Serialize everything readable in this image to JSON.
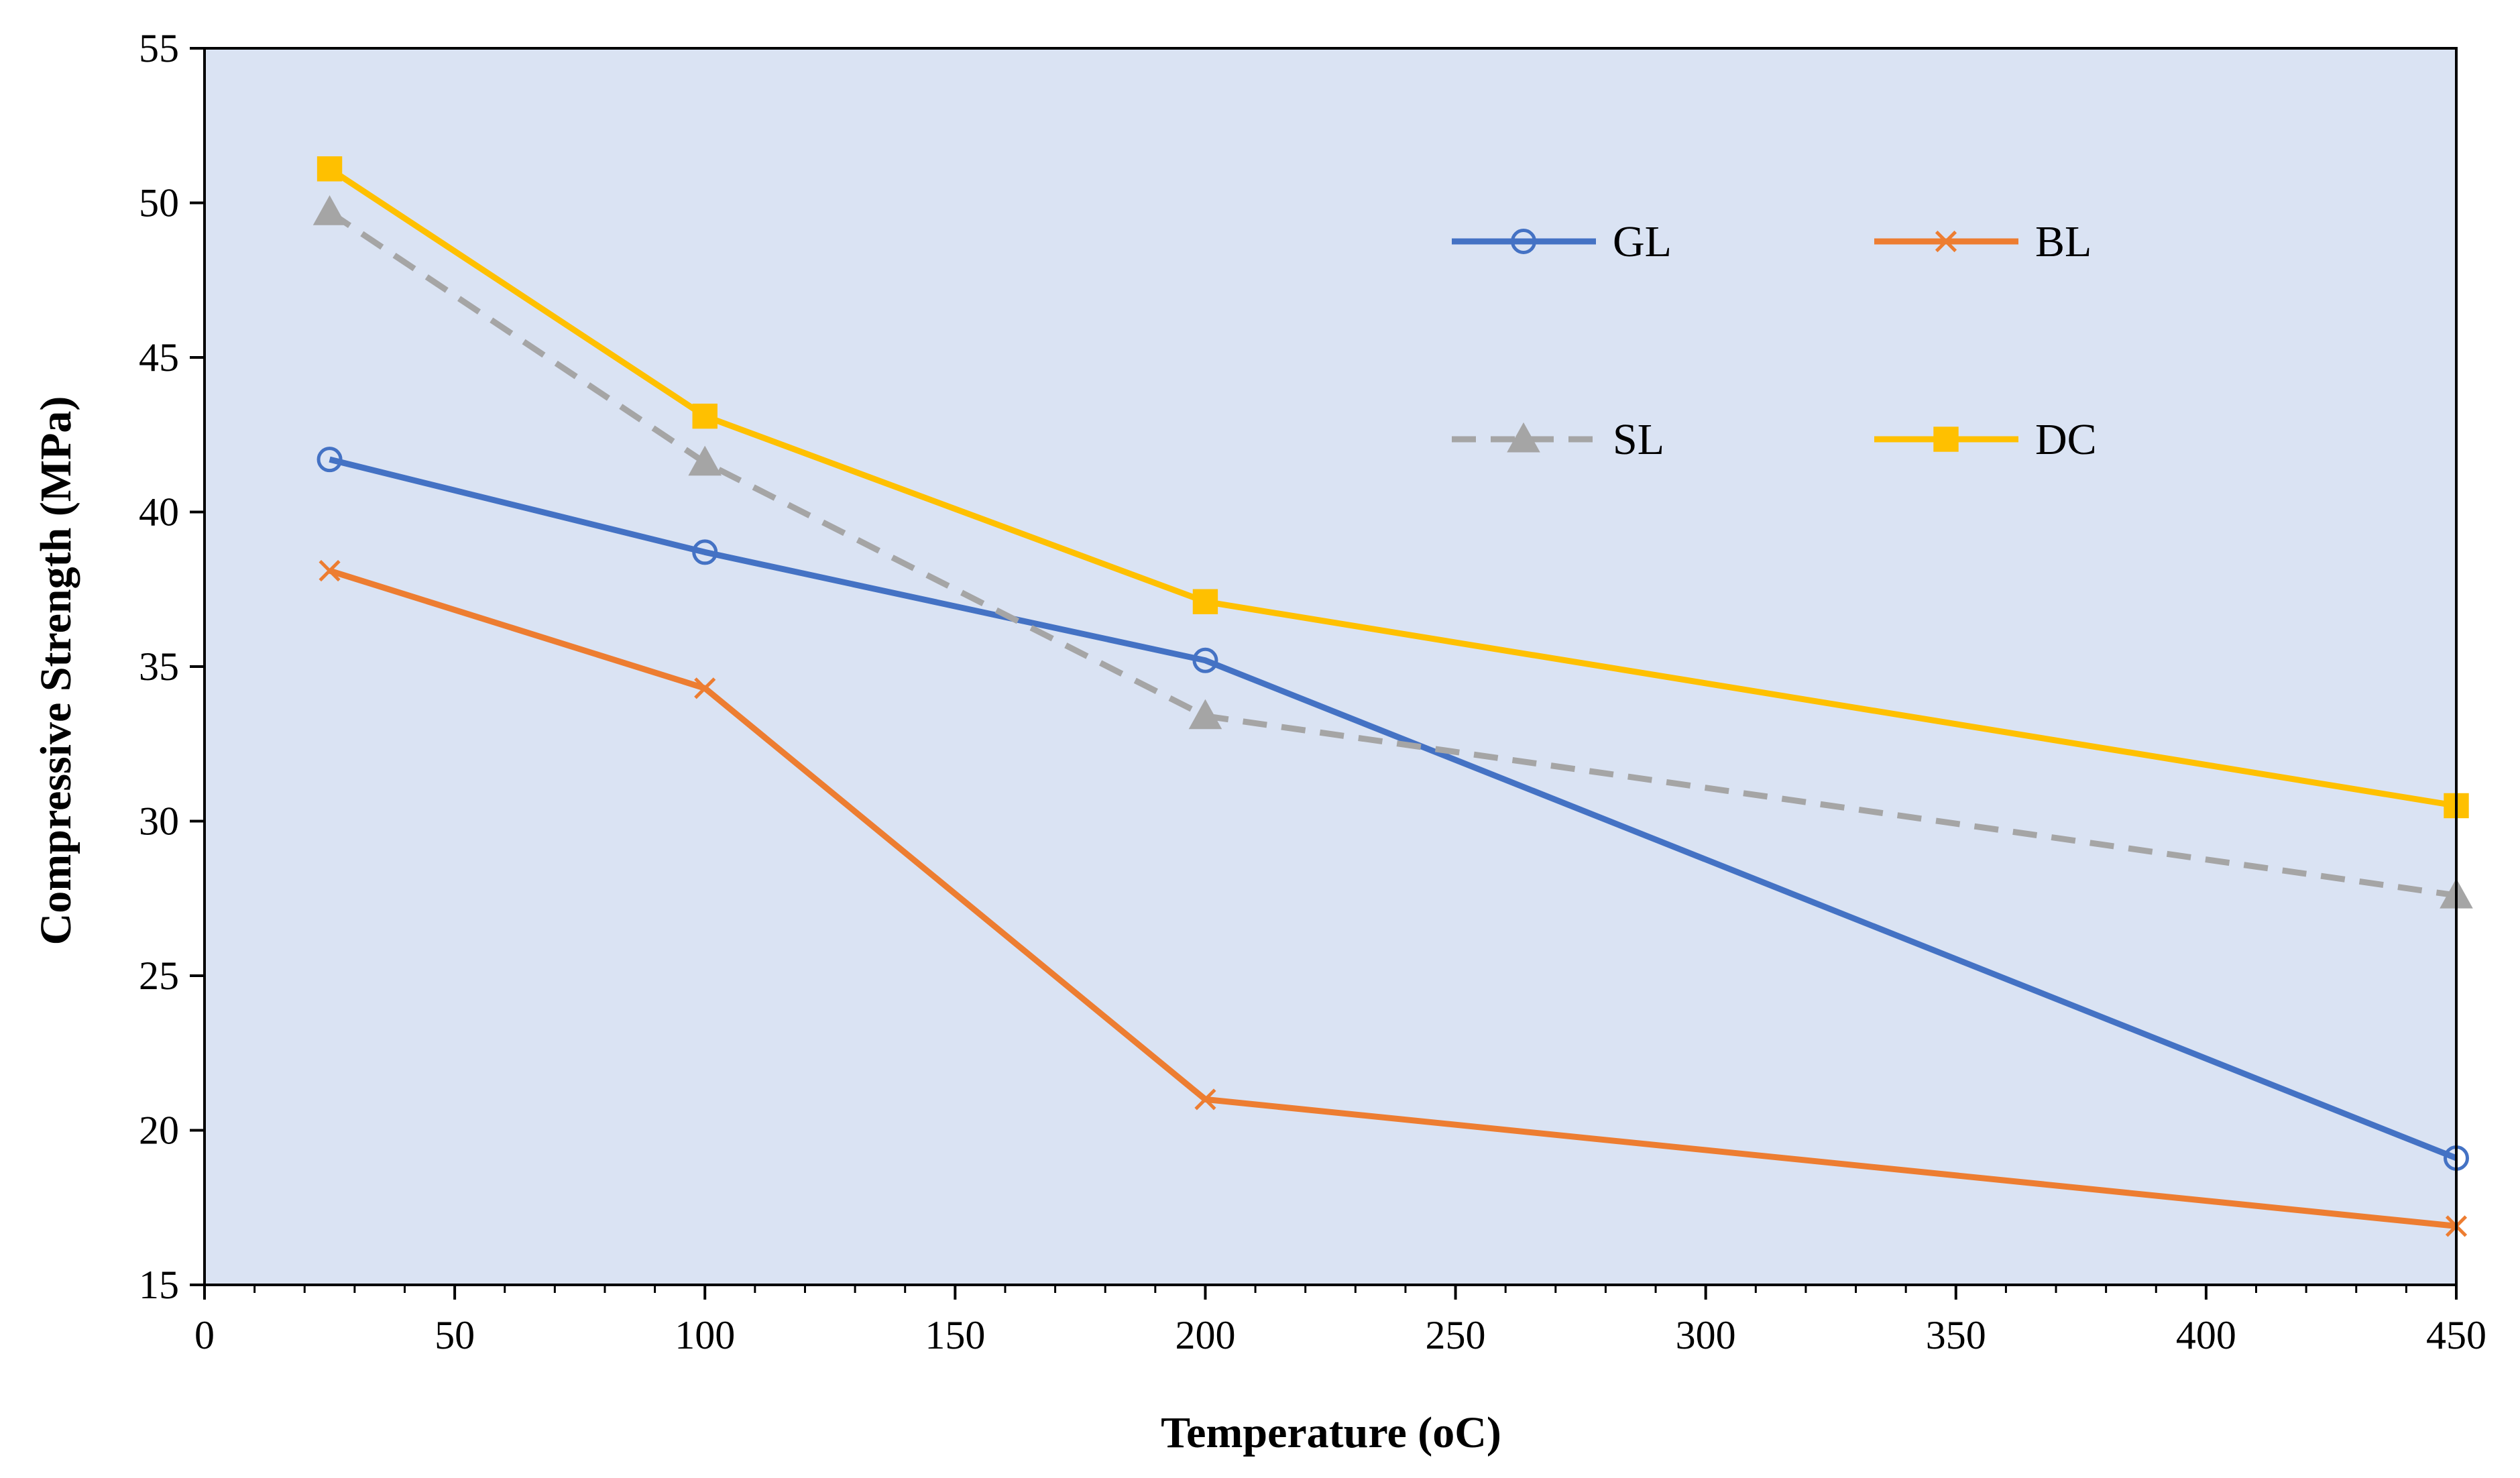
{
  "chart_data": {
    "type": "line",
    "title": "",
    "xlabel": "Temperature (oC)",
    "ylabel": "Compressive Strength (MPa)",
    "xlim": [
      0,
      450
    ],
    "ylim": [
      15,
      55
    ],
    "xticks": [
      0,
      50,
      100,
      150,
      200,
      250,
      300,
      350,
      400,
      450
    ],
    "yticks": [
      15,
      20,
      25,
      30,
      35,
      40,
      45,
      50,
      55
    ],
    "x": [
      25,
      100,
      200,
      450
    ],
    "grid": false,
    "plot_background": "#dae3f3",
    "legend_position": "top-right",
    "series": [
      {
        "name": "GL",
        "values": [
          41.7,
          38.7,
          35.2,
          19.1
        ],
        "color": "#4472c4",
        "marker": "circle-open",
        "dash": "solid"
      },
      {
        "name": "BL",
        "values": [
          38.1,
          34.3,
          21.0,
          16.9
        ],
        "color": "#ed7d31",
        "marker": "x",
        "dash": "solid"
      },
      {
        "name": "SL",
        "values": [
          49.7,
          41.6,
          33.4,
          27.6
        ],
        "color": "#a5a5a5",
        "marker": "triangle",
        "dash": "dashed"
      },
      {
        "name": "DC",
        "values": [
          51.1,
          43.1,
          37.1,
          30.5
        ],
        "color": "#ffc000",
        "marker": "square",
        "dash": "solid"
      }
    ]
  }
}
